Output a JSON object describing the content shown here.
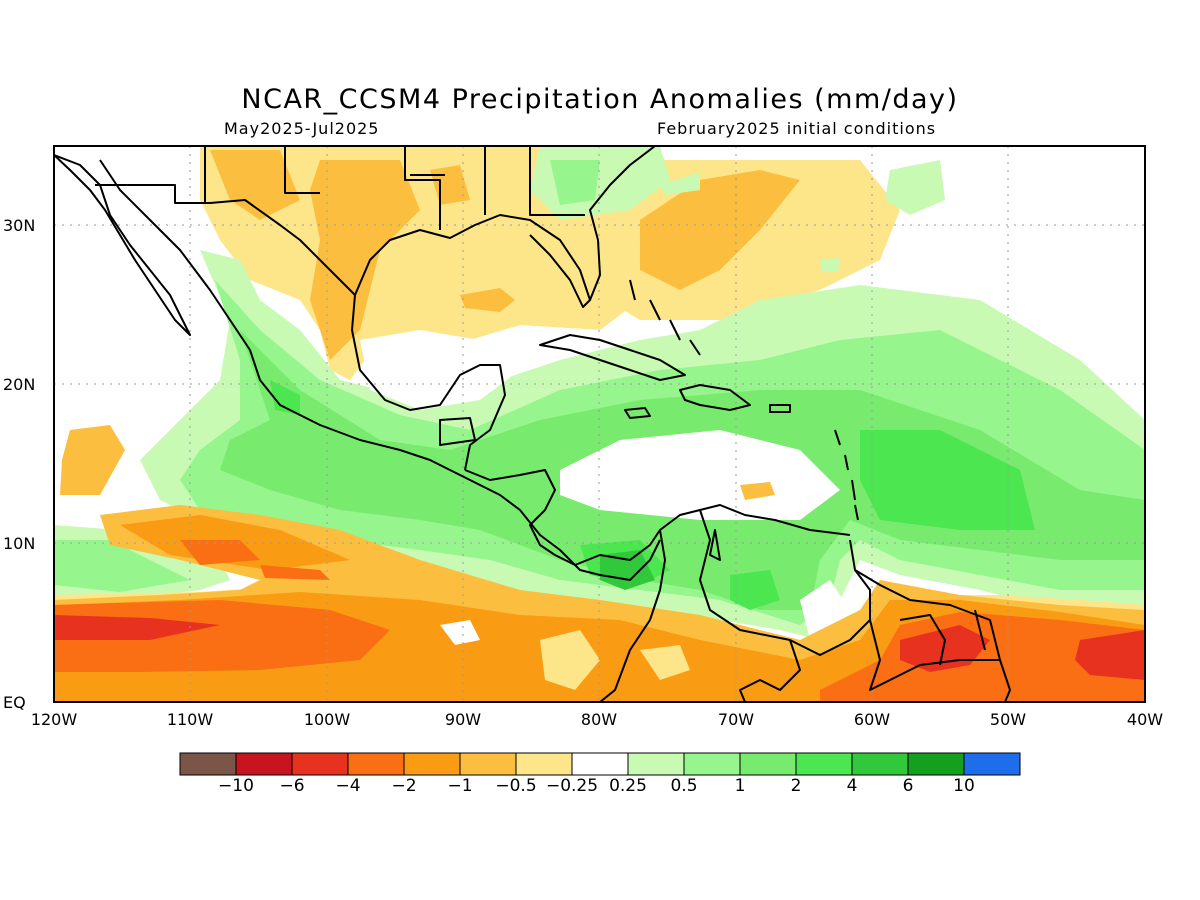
{
  "title": "NCAR_CCSM4 Precipitation Anomalies (mm/day)",
  "period": "May2025-Jul2025",
  "init": "February2025 initial conditions",
  "lat_labels": [
    "30N",
    "20N",
    "10N",
    "EQ"
  ],
  "lon_labels": [
    "120W",
    "110W",
    "100W",
    "90W",
    "80W",
    "70W",
    "60W",
    "50W",
    "40W"
  ],
  "colorbar": {
    "colors": [
      "#7a5548",
      "#c8141e",
      "#e6321e",
      "#fa6e14",
      "#fa9b14",
      "#fbbe3e",
      "#fde68a",
      "#ffffff",
      "#c8fab4",
      "#96f58c",
      "#78eb6e",
      "#4be650",
      "#32c83c",
      "#14a01e",
      "#1e6eeb"
    ],
    "labels": [
      "-10",
      "-6",
      "-4",
      "-2",
      "-1",
      "-0.5",
      "-0.25",
      "0.25",
      "0.5",
      "1",
      "2",
      "4",
      "6",
      "10"
    ]
  }
}
